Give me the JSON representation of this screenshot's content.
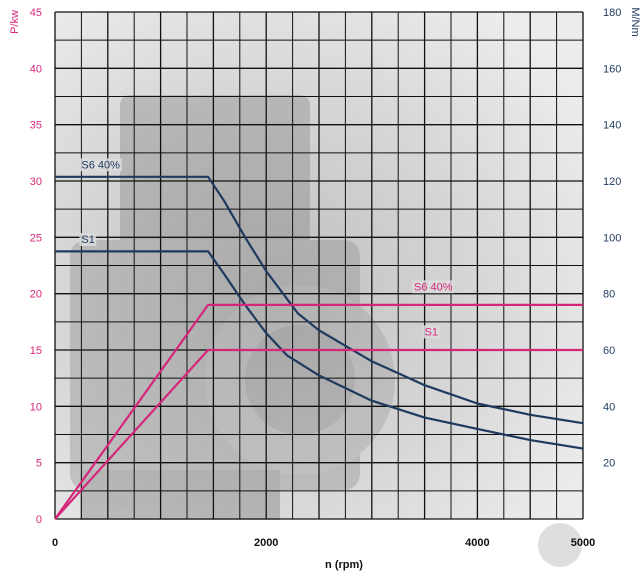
{
  "chart_data": {
    "type": "line",
    "xlabel": "n (rpm)",
    "ylabel_left": "P/kw",
    "ylabel_right": "M/Nm",
    "xlim": [
      0,
      5000
    ],
    "ylim_left": [
      0,
      45
    ],
    "ylim_right": [
      0,
      180
    ],
    "xticks": [
      "0",
      "2000",
      "4000",
      "5000"
    ],
    "yticks_left": [
      "0",
      "5",
      "10",
      "15",
      "20",
      "25",
      "30",
      "35",
      "40",
      "45"
    ],
    "yticks_right": [
      "20",
      "40",
      "60",
      "80",
      "100",
      "120",
      "140",
      "160",
      "180"
    ],
    "grid": true,
    "colors": {
      "power": "#d6267a",
      "torque": "#1f3a5f",
      "grid": "#111111",
      "left_axis_text": "#d6267a",
      "right_axis_text": "#1f3a5f",
      "background": "#e9e9e9"
    },
    "series": [
      {
        "name": "S6 40%",
        "axis": "right",
        "color": "#1f3a5f",
        "x": [
          0,
          1450,
          1600,
          1800,
          2000,
          2200,
          2300,
          2500,
          3000,
          3500,
          4000,
          4500,
          5000
        ],
        "y": [
          121.5,
          121.5,
          113,
          100,
          88,
          78,
          73,
          67,
          56,
          47.5,
          41,
          37,
          34
        ]
      },
      {
        "name": "S1",
        "axis": "right",
        "color": "#1f3a5f",
        "x": [
          0,
          1450,
          1600,
          1800,
          2000,
          2200,
          2500,
          3000,
          3500,
          4000,
          4500,
          5000
        ],
        "y": [
          95,
          95,
          87,
          76,
          66,
          58,
          51,
          42,
          36,
          32,
          28,
          25
        ]
      },
      {
        "name": "S6 40%",
        "axis": "left",
        "color": "#d6267a",
        "x": [
          0,
          1450,
          5000
        ],
        "y": [
          0,
          19,
          19
        ]
      },
      {
        "name": "S1",
        "axis": "left",
        "color": "#d6267a",
        "x": [
          0,
          1450,
          5000
        ],
        "y": [
          0,
          15,
          15
        ]
      }
    ],
    "annotations": [
      {
        "text": "S6 40%",
        "color": "#1f3a5f",
        "x": 250,
        "axis": "right",
        "y": 124.5
      },
      {
        "text": "S1",
        "color": "#1f3a5f",
        "x": 250,
        "axis": "right",
        "y": 98
      },
      {
        "text": "S6 40%",
        "color": "#d6267a",
        "x": 3400,
        "axis": "left",
        "y": 20.3
      },
      {
        "text": "S1",
        "color": "#d6267a",
        "x": 3500,
        "axis": "left",
        "y": 16.3
      }
    ]
  }
}
